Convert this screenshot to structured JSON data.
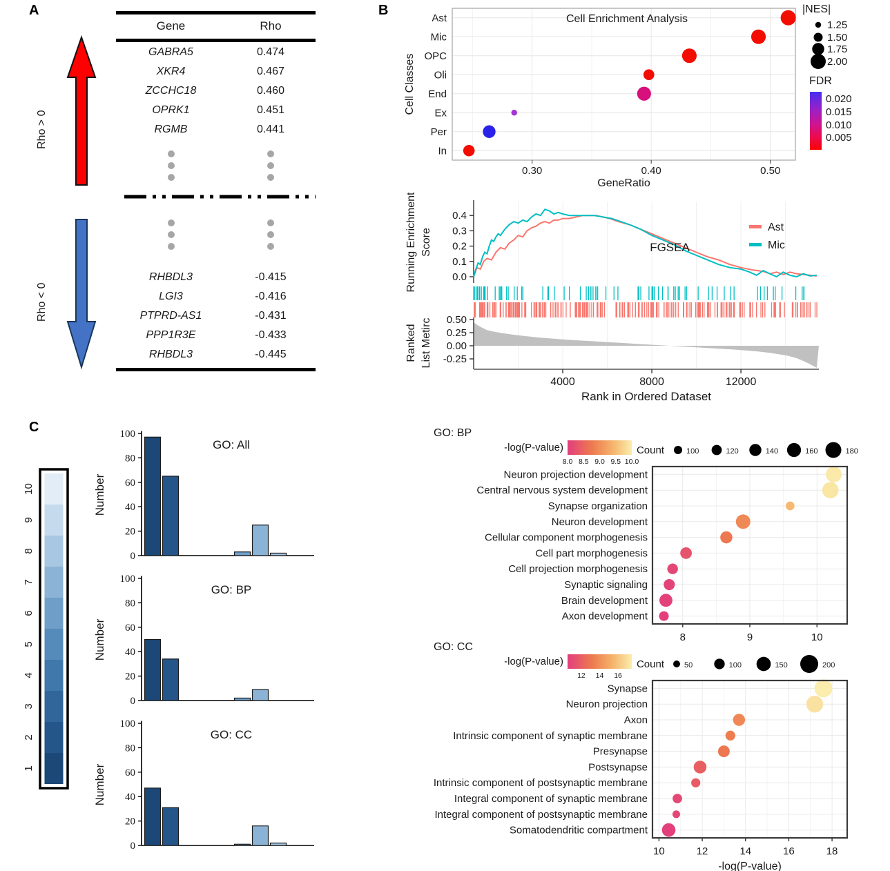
{
  "panelA": {
    "label": "A",
    "up_label": "Rho > 0",
    "down_label": "Rho < 0",
    "up_arrow_color": "#FE0000",
    "down_arrow_color": "#4472C4",
    "table": {
      "headers": [
        "Gene",
        "Rho"
      ],
      "positive_rows": [
        [
          "GABRA5",
          "0.474"
        ],
        [
          "XKR4",
          "0.467"
        ],
        [
          "ZCCHC18",
          "0.460"
        ],
        [
          "OPRK1",
          "0.451"
        ],
        [
          "RGMB",
          "0.441"
        ]
      ],
      "negative_rows": [
        [
          "RHBDL3",
          "-0.415"
        ],
        [
          "LGI3",
          "-0.416"
        ],
        [
          "PTPRD-AS1",
          "-0.431"
        ],
        [
          "PPP1R3E",
          "-0.433"
        ],
        [
          "RHBDL3",
          "-0.445"
        ]
      ]
    }
  },
  "panelB": {
    "label": "B"
  },
  "panelC": {
    "label": "C"
  },
  "palette": {
    "blues": [
      "#1B4876",
      "#24568A",
      "#31669B",
      "#4178AB",
      "#558BBA",
      "#6F9FC8",
      "#8BB3D6",
      "#A8C7E2",
      "#C5DAED",
      "#E2EDF7"
    ],
    "pvalue_gradient": [
      "#E23E7C",
      "#ED7A4F",
      "#F5B36B",
      "#FAEDAD"
    ],
    "fdr_gradient": [
      "#4430EE",
      "#9A20C8",
      "#CC1593",
      "#EE0A49",
      "#F80202"
    ],
    "ast_color": "#F8766D",
    "mic_color": "#00BFC4",
    "area_color": "#C0C0C0",
    "dot_gray": "#A6A6A6"
  },
  "chart_data": [
    {
      "id": "cell_enrichment",
      "type": "scatter",
      "title": "Cell Enrichment Analysis",
      "xlabel": "GeneRatio",
      "ylabel": "Cell Classes",
      "xlim": [
        0.233,
        0.521
      ],
      "xticks": [
        "0.30",
        "0.40",
        "0.50"
      ],
      "categories": [
        "Ast",
        "Mic",
        "OPC",
        "Oli",
        "End",
        "Ex",
        "Per",
        "In"
      ],
      "points": [
        {
          "cell": "Ast",
          "gene_ratio": 0.515,
          "nes": 2.0,
          "color": "#F30D00"
        },
        {
          "cell": "Mic",
          "gene_ratio": 0.49,
          "nes": 1.95,
          "color": "#F30D00"
        },
        {
          "cell": "OPC",
          "gene_ratio": 0.432,
          "nes": 1.95,
          "color": "#F30D00"
        },
        {
          "cell": "Oli",
          "gene_ratio": 0.398,
          "nes": 1.65,
          "color": "#F30D00"
        },
        {
          "cell": "End",
          "gene_ratio": 0.394,
          "nes": 1.9,
          "color": "#D6117E"
        },
        {
          "cell": "Ex",
          "gene_ratio": 0.285,
          "nes": 1.25,
          "color": "#A433D6"
        },
        {
          "cell": "Per",
          "gene_ratio": 0.264,
          "nes": 1.8,
          "color": "#2A22E8"
        },
        {
          "cell": "In",
          "gene_ratio": 0.247,
          "nes": 1.7,
          "color": "#F30D00"
        }
      ],
      "legend_size": {
        "title": "|NES|",
        "labels": [
          "1.25",
          "1.50",
          "1.75",
          "2.00"
        ]
      },
      "legend_color": {
        "title": "FDR",
        "labels": [
          "0.020",
          "0.015",
          "0.010",
          "0.005"
        ]
      }
    },
    {
      "id": "fgsea",
      "type": "line",
      "title": "FGSEA",
      "ylabel_top": [
        "Running Enrichment",
        "Score"
      ],
      "ylabel_bottom": [
        "Ranked",
        "List Metirc"
      ],
      "xlabel": "Rank in Ordered Dataset",
      "xticks": [
        4000,
        8000,
        12000
      ],
      "xmax": 15500,
      "yticks_top": [
        "0.4",
        "0.3",
        "0.2",
        "0.1",
        "0.0"
      ],
      "yticks_bottom": [
        "0.50",
        "0.25",
        "0.00",
        "-0.25"
      ],
      "series": [
        {
          "name": "Ast",
          "color": "#F8766D",
          "points": [
            [
              0,
              0.0
            ],
            [
              150,
              0.06
            ],
            [
              300,
              0.05
            ],
            [
              450,
              0.1
            ],
            [
              600,
              0.12
            ],
            [
              800,
              0.11
            ],
            [
              1000,
              0.16
            ],
            [
              1200,
              0.19
            ],
            [
              1400,
              0.18
            ],
            [
              1600,
              0.22
            ],
            [
              1800,
              0.24
            ],
            [
              2000,
              0.27
            ],
            [
              2200,
              0.26
            ],
            [
              2400,
              0.3
            ],
            [
              2600,
              0.32
            ],
            [
              2800,
              0.33
            ],
            [
              3000,
              0.35
            ],
            [
              3200,
              0.36
            ],
            [
              3400,
              0.35
            ],
            [
              3600,
              0.37
            ],
            [
              3800,
              0.37
            ],
            [
              4000,
              0.38
            ],
            [
              4300,
              0.38
            ],
            [
              4600,
              0.39
            ],
            [
              4900,
              0.4
            ],
            [
              5200,
              0.4
            ],
            [
              5500,
              0.4
            ],
            [
              5800,
              0.39
            ],
            [
              6100,
              0.38
            ],
            [
              6500,
              0.36
            ],
            [
              7000,
              0.34
            ],
            [
              7500,
              0.31
            ],
            [
              8000,
              0.28
            ],
            [
              8500,
              0.25
            ],
            [
              9000,
              0.22
            ],
            [
              9500,
              0.19
            ],
            [
              10000,
              0.16
            ],
            [
              10500,
              0.13
            ],
            [
              11000,
              0.11
            ],
            [
              11500,
              0.08
            ],
            [
              12000,
              0.06
            ],
            [
              12500,
              0.045
            ],
            [
              13000,
              0.035
            ],
            [
              13300,
              0.02
            ],
            [
              13600,
              0.03
            ],
            [
              13900,
              0.015
            ],
            [
              14200,
              0.03
            ],
            [
              14500,
              0.02
            ],
            [
              14800,
              0.015
            ],
            [
              15100,
              0.01
            ],
            [
              15400,
              0.005
            ]
          ]
        },
        {
          "name": "Mic",
          "color": "#00BFC4",
          "points": [
            [
              0,
              0.0
            ],
            [
              100,
              0.05
            ],
            [
              200,
              0.09
            ],
            [
              300,
              0.08
            ],
            [
              400,
              0.13
            ],
            [
              500,
              0.16
            ],
            [
              600,
              0.15
            ],
            [
              700,
              0.2
            ],
            [
              800,
              0.24
            ],
            [
              900,
              0.23
            ],
            [
              1000,
              0.26
            ],
            [
              1100,
              0.28
            ],
            [
              1200,
              0.27
            ],
            [
              1400,
              0.31
            ],
            [
              1600,
              0.34
            ],
            [
              1800,
              0.36
            ],
            [
              2000,
              0.35
            ],
            [
              2200,
              0.37
            ],
            [
              2400,
              0.36
            ],
            [
              2600,
              0.39
            ],
            [
              2800,
              0.41
            ],
            [
              3000,
              0.4
            ],
            [
              3200,
              0.44
            ],
            [
              3400,
              0.43
            ],
            [
              3600,
              0.41
            ],
            [
              3800,
              0.42
            ],
            [
              4000,
              0.41
            ],
            [
              4300,
              0.4
            ],
            [
              4600,
              0.4
            ],
            [
              5000,
              0.4
            ],
            [
              5400,
              0.4
            ],
            [
              5800,
              0.39
            ],
            [
              6200,
              0.38
            ],
            [
              6600,
              0.36
            ],
            [
              7000,
              0.34
            ],
            [
              7500,
              0.31
            ],
            [
              8000,
              0.27
            ],
            [
              8500,
              0.24
            ],
            [
              9000,
              0.21
            ],
            [
              9500,
              0.17
            ],
            [
              10000,
              0.14
            ],
            [
              10500,
              0.11
            ],
            [
              11000,
              0.08
            ],
            [
              11500,
              0.06
            ],
            [
              12000,
              0.05
            ],
            [
              12400,
              0.03
            ],
            [
              12700,
              0.01
            ],
            [
              13000,
              0.04
            ],
            [
              13300,
              0.02
            ],
            [
              13600,
              0.0
            ],
            [
              13900,
              0.03
            ],
            [
              14200,
              0.01
            ],
            [
              14500,
              0.0
            ],
            [
              14800,
              0.02
            ],
            [
              15100,
              0.005
            ],
            [
              15400,
              0.01
            ]
          ]
        }
      ],
      "rug": {
        "mic_count": 78,
        "ast_count": 210
      },
      "ranked_metric": [
        [
          0,
          0.45
        ],
        [
          150,
          0.4
        ],
        [
          350,
          0.35
        ],
        [
          600,
          0.3
        ],
        [
          900,
          0.27
        ],
        [
          1300,
          0.24
        ],
        [
          1800,
          0.21
        ],
        [
          2400,
          0.18
        ],
        [
          3000,
          0.155
        ],
        [
          3600,
          0.135
        ],
        [
          4200,
          0.115
        ],
        [
          4800,
          0.1
        ],
        [
          5400,
          0.085
        ],
        [
          6000,
          0.07
        ],
        [
          6600,
          0.055
        ],
        [
          7200,
          0.04
        ],
        [
          7800,
          0.025
        ],
        [
          8400,
          0.01
        ],
        [
          8800,
          0.0
        ],
        [
          9200,
          -0.01
        ],
        [
          9800,
          -0.025
        ],
        [
          10400,
          -0.04
        ],
        [
          11000,
          -0.055
        ],
        [
          11600,
          -0.07
        ],
        [
          12200,
          -0.09
        ],
        [
          12800,
          -0.11
        ],
        [
          13300,
          -0.135
        ],
        [
          13700,
          -0.16
        ],
        [
          14100,
          -0.19
        ],
        [
          14500,
          -0.235
        ],
        [
          14800,
          -0.29
        ],
        [
          15100,
          -0.35
        ],
        [
          15400,
          -0.42
        ]
      ]
    },
    {
      "id": "go_all_hist",
      "type": "bar",
      "title": "GO: All",
      "ylabel": "Number",
      "yticks": [
        0,
        20,
        40,
        60,
        80,
        100
      ],
      "ylim": [
        0,
        100
      ],
      "bins": [
        1,
        2,
        3,
        4,
        5,
        6,
        7,
        8,
        9,
        10
      ],
      "values": [
        97,
        65,
        0,
        0,
        0,
        3,
        25,
        2,
        0,
        0
      ]
    },
    {
      "id": "go_bp_hist",
      "type": "bar",
      "title": "GO: BP",
      "ylabel": "Number",
      "yticks": [
        0,
        20,
        40,
        60,
        80,
        100
      ],
      "ylim": [
        0,
        100
      ],
      "bins": [
        1,
        2,
        3,
        4,
        5,
        6,
        7,
        8,
        9,
        10
      ],
      "values": [
        50,
        34,
        0,
        0,
        0,
        2,
        9,
        0,
        0,
        0
      ]
    },
    {
      "id": "go_cc_hist",
      "type": "bar",
      "title": "GO: CC",
      "ylabel": "Number",
      "yticks": [
        0,
        20,
        40,
        60,
        80,
        100
      ],
      "ylim": [
        0,
        100
      ],
      "bins": [
        1,
        2,
        3,
        4,
        5,
        6,
        7,
        8,
        9,
        10
      ],
      "values": [
        47,
        31,
        0,
        0,
        0,
        1,
        16,
        2,
        0,
        0
      ]
    },
    {
      "id": "go_bp_dotplot",
      "type": "scatter",
      "title": "GO: BP",
      "xticks": [
        8,
        9,
        10
      ],
      "xlim": [
        7.55,
        10.45
      ],
      "color_legend": {
        "title": "-log(P-value)",
        "ticks": [
          "8.0",
          "8.5",
          "9.0",
          "9.5",
          "10.0"
        ]
      },
      "size_legend": {
        "title": "Count",
        "values": [
          100,
          120,
          140,
          160,
          180
        ]
      },
      "rows": [
        {
          "term": "Neuron projection development",
          "neg_log_p": 10.25,
          "count": 180
        },
        {
          "term": "Central nervous system development",
          "neg_log_p": 10.2,
          "count": 185
        },
        {
          "term": "Synapse organization",
          "neg_log_p": 9.6,
          "count": 105
        },
        {
          "term": "Neuron development",
          "neg_log_p": 8.9,
          "count": 165
        },
        {
          "term": "Cellular component morphogenesis",
          "neg_log_p": 8.65,
          "count": 140
        },
        {
          "term": "Cell part morphogenesis",
          "neg_log_p": 8.05,
          "count": 135
        },
        {
          "term": "Cell projection morphogenesis",
          "neg_log_p": 7.85,
          "count": 125
        },
        {
          "term": "Synaptic signaling",
          "neg_log_p": 7.8,
          "count": 130
        },
        {
          "term": "Brain development",
          "neg_log_p": 7.75,
          "count": 150
        },
        {
          "term": "Axon development",
          "neg_log_p": 7.72,
          "count": 115
        }
      ]
    },
    {
      "id": "go_cc_dotplot",
      "type": "scatter",
      "title": "GO: CC",
      "xlabel": "-log(P-value)",
      "xticks": [
        10,
        12,
        14,
        16,
        18
      ],
      "xlim": [
        9.7,
        18.7
      ],
      "color_legend": {
        "title": "-log(P-value)",
        "ticks": [
          "12",
          "14",
          "16"
        ]
      },
      "size_legend": {
        "title": "Count",
        "values": [
          50,
          100,
          150,
          200
        ]
      },
      "rows": [
        {
          "term": "Synapse",
          "neg_log_p": 17.6,
          "count": 200
        },
        {
          "term": "Neuron projection",
          "neg_log_p": 17.2,
          "count": 185
        },
        {
          "term": "Axon",
          "neg_log_p": 13.7,
          "count": 120
        },
        {
          "term": "Intrinsic component of synaptic membrane",
          "neg_log_p": 13.3,
          "count": 90
        },
        {
          "term": "Presynapse",
          "neg_log_p": 13.0,
          "count": 115
        },
        {
          "term": "Postsynapse",
          "neg_log_p": 11.9,
          "count": 130
        },
        {
          "term": "Intrinsic component of postsynaptic membrane",
          "neg_log_p": 11.7,
          "count": 80
        },
        {
          "term": "Integral component of synaptic membrane",
          "neg_log_p": 10.85,
          "count": 85
        },
        {
          "term": "Integral component of postsynaptic membrane",
          "neg_log_p": 10.8,
          "count": 60
        },
        {
          "term": "Somatodendritic compartment",
          "neg_log_p": 10.45,
          "count": 140
        }
      ]
    },
    {
      "id": "blues_colorbar",
      "type": "legend",
      "ticks": [
        "1",
        "2",
        "3",
        "4",
        "5",
        "6",
        "7",
        "8",
        "9",
        "10"
      ]
    }
  ]
}
